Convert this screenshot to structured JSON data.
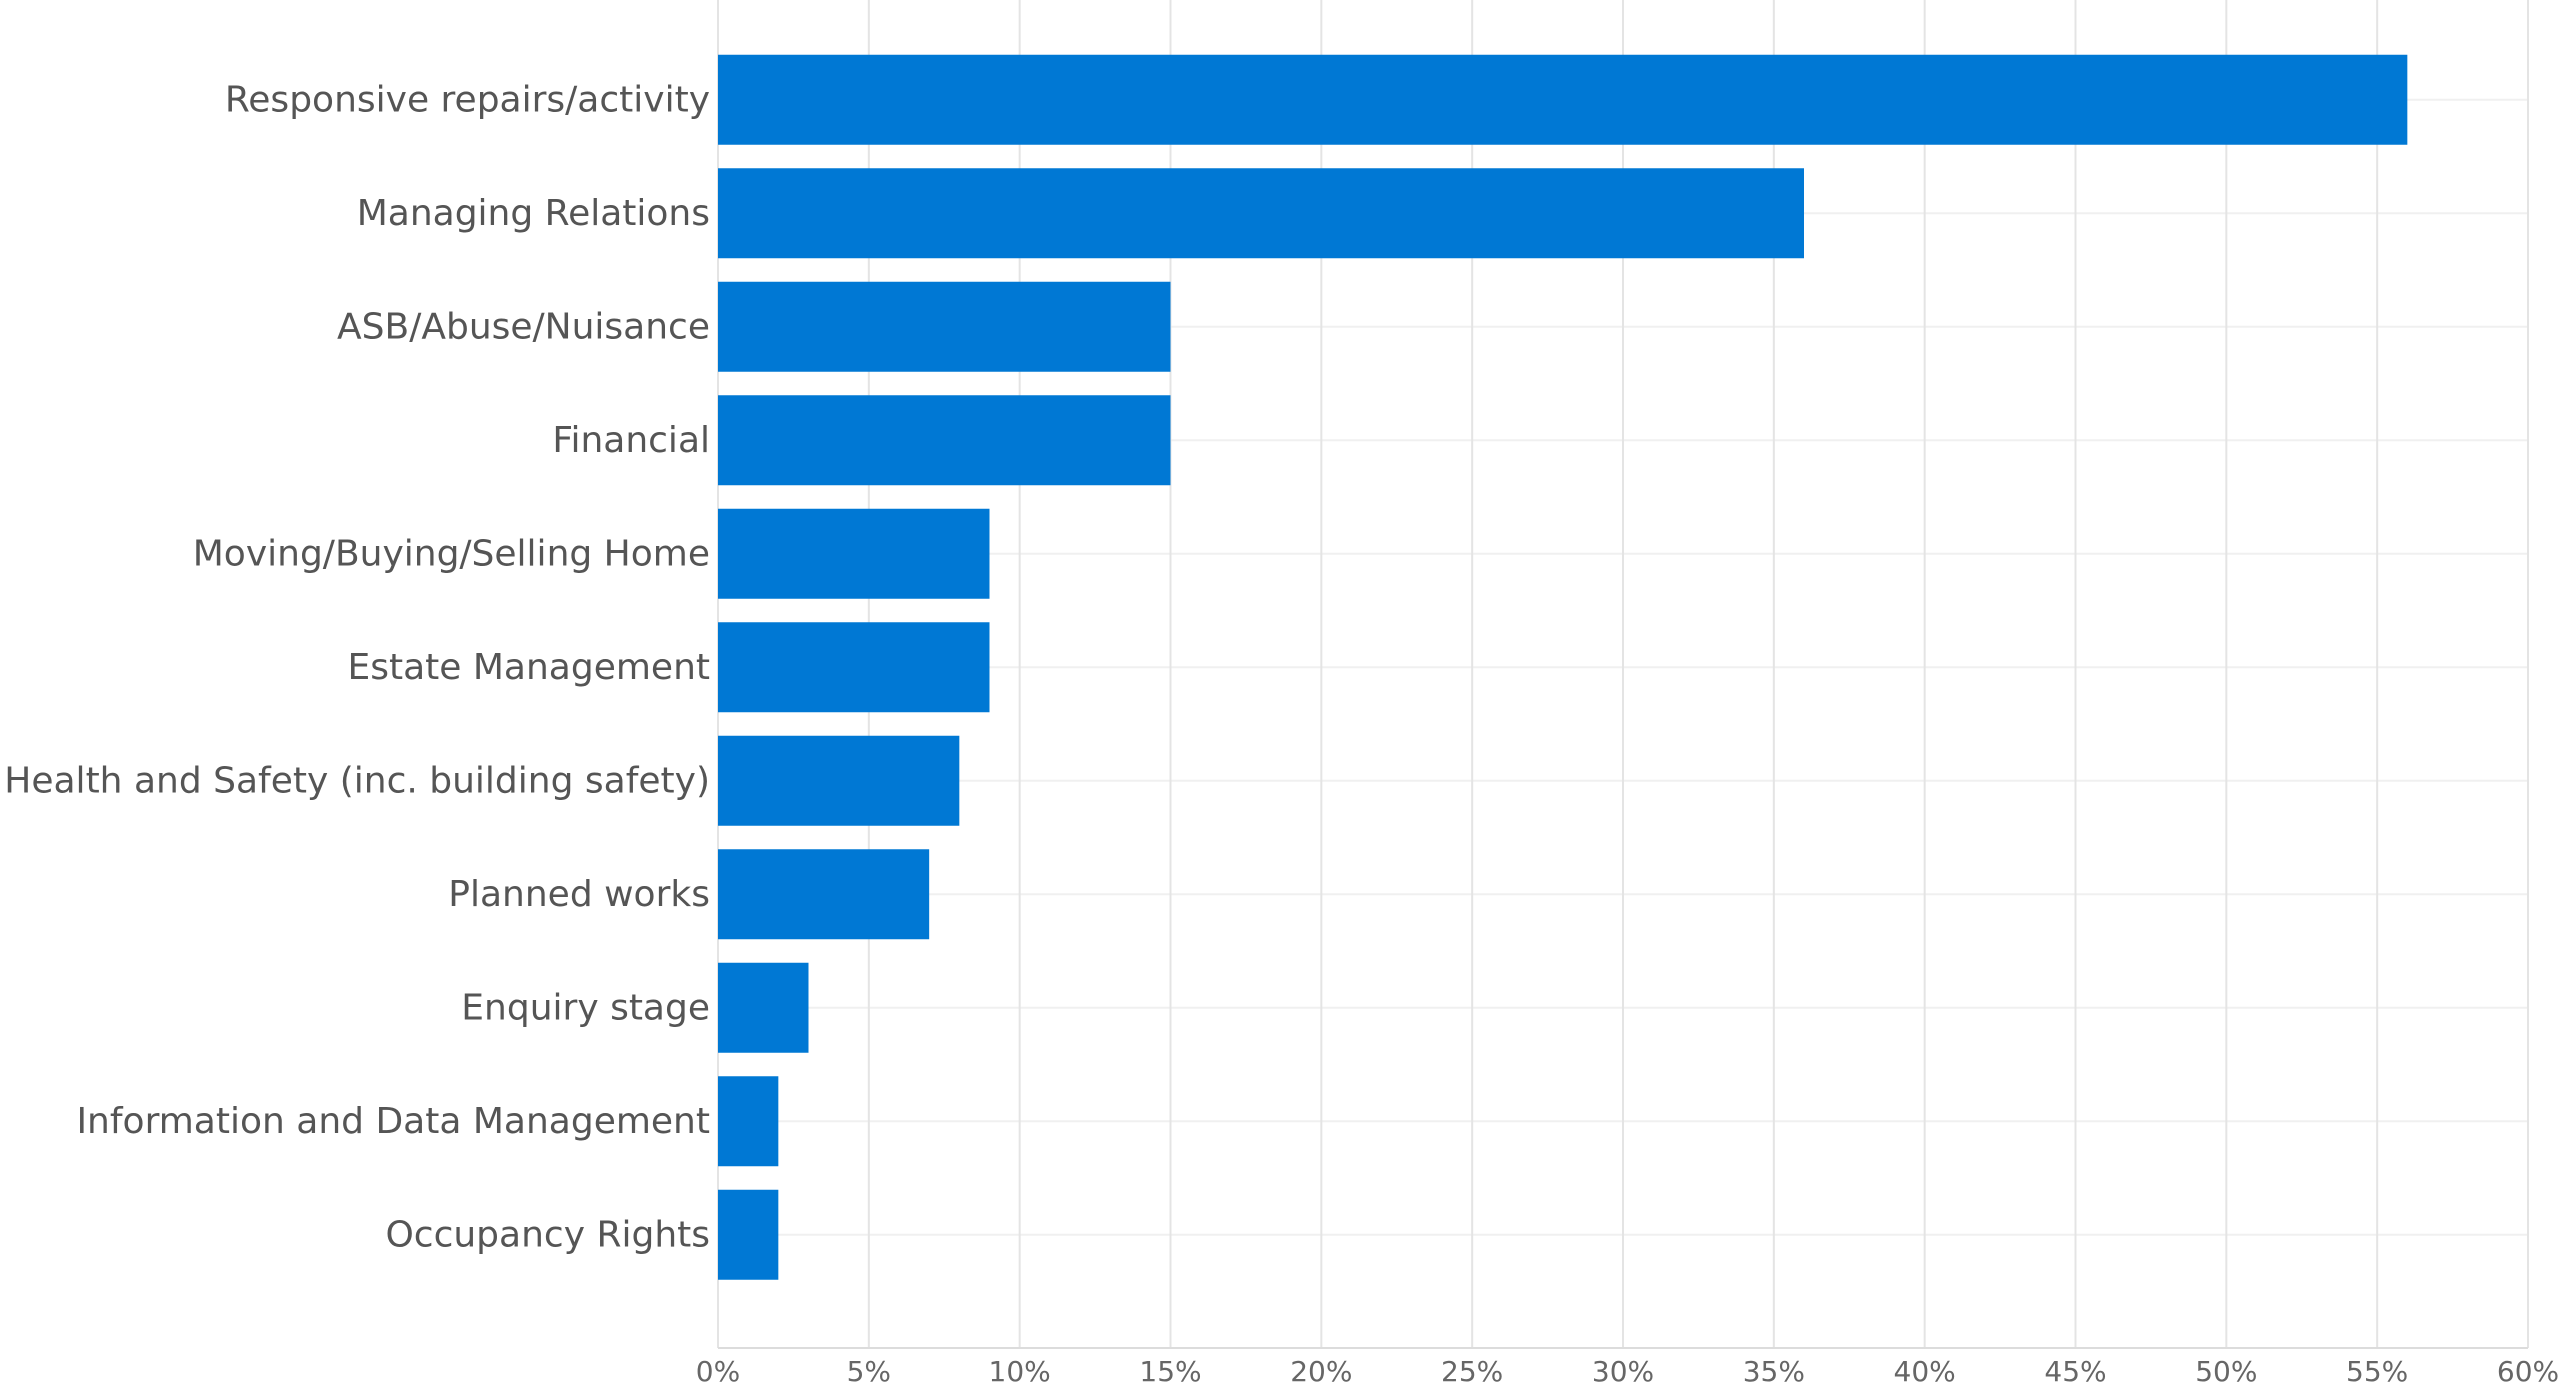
{
  "chart_data": {
    "type": "bar",
    "orientation": "horizontal",
    "title": "",
    "xlabel": "",
    "ylabel": "",
    "categories": [
      "Responsive repairs/activity",
      "Managing Relations",
      "ASB/Abuse/Nuisance",
      "Financial",
      "Moving/Buying/Selling Home",
      "Estate Management",
      "Health and Safety (inc. building safety)",
      "Planned works",
      "Enquiry stage",
      "Information and Data Management",
      "Occupancy Rights"
    ],
    "values": [
      56,
      36,
      15,
      15,
      9,
      9,
      8,
      7,
      3,
      2,
      2
    ],
    "value_unit": "%",
    "xlim": [
      0,
      60
    ],
    "x_ticks": [
      0,
      5,
      10,
      15,
      20,
      25,
      30,
      35,
      40,
      45,
      50,
      55,
      60
    ],
    "x_tick_labels": [
      "0%",
      "5%",
      "10%",
      "15%",
      "20%",
      "25%",
      "30%",
      "35%",
      "40%",
      "45%",
      "50%",
      "55%",
      "60%"
    ],
    "grid": true,
    "legend": "none",
    "bar_color": "#0078d4"
  }
}
